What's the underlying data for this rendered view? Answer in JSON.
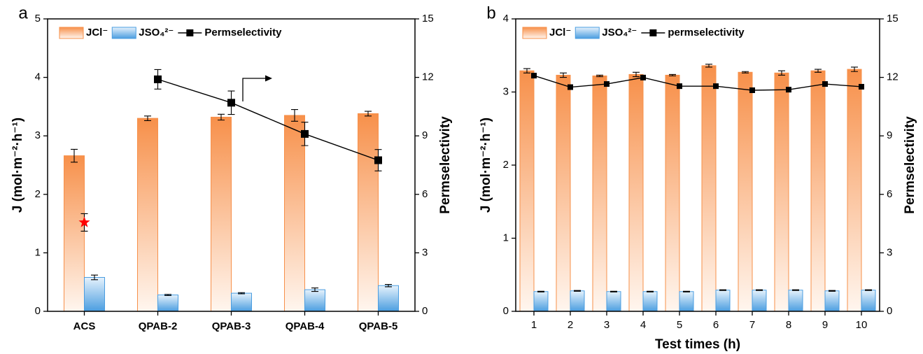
{
  "chart_data": [
    {
      "type": "bar",
      "panel_label": "a",
      "ylabel": "J (mol·m⁻²·h⁻¹)",
      "y2label": "Permselectivity",
      "categories": [
        "ACS",
        "QPAB-2",
        "QPAB-3",
        "QPAB-4",
        "QPAB-5"
      ],
      "ylim": [
        0,
        5
      ],
      "yticks": [
        0,
        1,
        2,
        3,
        4,
        5
      ],
      "y2lim": [
        0,
        15
      ],
      "y2ticks": [
        0,
        3,
        6,
        9,
        12,
        15
      ],
      "series": [
        {
          "name": "JCl⁻",
          "color": "#f7904a",
          "values": [
            2.66,
            3.3,
            3.32,
            3.35,
            3.38
          ],
          "errors": [
            0.11,
            0.04,
            0.05,
            0.1,
            0.04
          ]
        },
        {
          "name": "JSO₄²⁻",
          "color": "#4a9de0",
          "values": [
            0.58,
            0.28,
            0.31,
            0.37,
            0.44
          ],
          "errors": [
            0.04,
            0.01,
            0.01,
            0.03,
            0.02
          ]
        },
        {
          "name": "Permselectivity",
          "type": "line",
          "axis": "y2",
          "color": "#000000",
          "values": [
            null,
            11.9,
            10.7,
            9.1,
            7.75
          ],
          "errors": [
            null,
            0.5,
            0.6,
            0.6,
            0.55
          ]
        },
        {
          "type": "star",
          "axis": "y2",
          "color": "#ff0000",
          "values": [
            4.56,
            null,
            null,
            null,
            null
          ],
          "errors": [
            0.45,
            null,
            null,
            null,
            null
          ]
        }
      ]
    },
    {
      "type": "bar",
      "panel_label": "b",
      "ylabel": "J (mol·m⁻²·h⁻¹)",
      "y2label": "Permselectivity",
      "xlabel": "Test times (h)",
      "x": [
        1,
        2,
        3,
        4,
        5,
        6,
        7,
        8,
        9,
        10
      ],
      "xlim": [
        0.5,
        10.5
      ],
      "xticks": [
        1,
        2,
        3,
        4,
        5,
        6,
        7,
        8,
        9,
        10
      ],
      "ylim": [
        0,
        4
      ],
      "yticks": [
        0,
        1,
        2,
        3,
        4
      ],
      "y2lim": [
        0,
        15
      ],
      "y2ticks": [
        0,
        3,
        6,
        9,
        12,
        15
      ],
      "series": [
        {
          "name": "JCl⁻",
          "color": "#f7904a",
          "values": [
            3.29,
            3.23,
            3.22,
            3.24,
            3.23,
            3.36,
            3.27,
            3.26,
            3.29,
            3.31
          ],
          "errors": [
            0.03,
            0.03,
            0.01,
            0.03,
            0.01,
            0.02,
            0.01,
            0.03,
            0.02,
            0.03
          ]
        },
        {
          "name": "JSO₄²⁻",
          "color": "#4a9de0",
          "values": [
            0.27,
            0.28,
            0.27,
            0.27,
            0.27,
            0.29,
            0.29,
            0.29,
            0.28,
            0.29
          ],
          "errors": [
            0.005,
            0.005,
            0.005,
            0.005,
            0.005,
            0.005,
            0.005,
            0.005,
            0.005,
            0.005
          ]
        },
        {
          "name": "permselectivity",
          "type": "line",
          "axis": "y2",
          "color": "#000000",
          "values": [
            12.09,
            11.5,
            11.66,
            11.99,
            11.55,
            11.55,
            11.34,
            11.37,
            11.66,
            11.52
          ]
        }
      ]
    }
  ]
}
